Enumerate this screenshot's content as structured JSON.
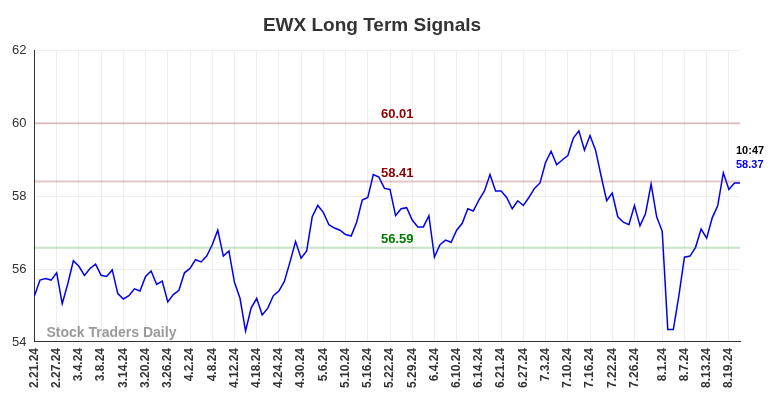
{
  "chart_data": {
    "type": "line",
    "title": "EWX Long Term Signals",
    "watermark": "Stock Traders Daily",
    "color": "#0000ee",
    "grid": true,
    "ylim": [
      54,
      62
    ],
    "yticks": [
      54,
      56,
      58,
      60,
      62
    ],
    "categories": [
      "2.21.24",
      null,
      null,
      null,
      "2.27.24",
      null,
      null,
      null,
      "3.4.24",
      null,
      null,
      null,
      "3.8.24",
      null,
      null,
      null,
      "3.14.24",
      null,
      null,
      null,
      "3.20.24",
      null,
      null,
      null,
      "3.26.24",
      null,
      null,
      null,
      "4.2.24",
      null,
      null,
      null,
      "4.8.24",
      null,
      null,
      null,
      "4.12.24",
      null,
      null,
      null,
      "4.18.24",
      null,
      null,
      null,
      "4.24.24",
      null,
      null,
      null,
      "4.30.24",
      null,
      null,
      null,
      "5.6.24",
      null,
      null,
      null,
      "5.10.24",
      null,
      null,
      null,
      "5.16.24",
      null,
      null,
      null,
      "5.22.24",
      null,
      null,
      null,
      "5.29.24",
      null,
      null,
      null,
      "6.4.24",
      null,
      null,
      null,
      "6.10.24",
      null,
      null,
      null,
      "6.14.24",
      null,
      null,
      null,
      "6.21.24",
      null,
      null,
      null,
      "6.27.24",
      null,
      null,
      null,
      "7.3.24",
      null,
      null,
      null,
      "7.10.24",
      null,
      null,
      null,
      "7.16.24",
      null,
      null,
      null,
      "7.22.24",
      null,
      null,
      null,
      "7.26.24",
      null,
      null,
      null,
      null,
      "8.1.24",
      null,
      null,
      null,
      "8.7.24",
      null,
      null,
      null,
      "8.13.24",
      null,
      null,
      null,
      "8.19.24",
      null,
      null
    ],
    "values": [
      55.27,
      55.7,
      55.74,
      55.7,
      55.9,
      55.05,
      55.6,
      56.23,
      56.08,
      55.83,
      56.02,
      56.14,
      55.83,
      55.8,
      55.98,
      55.33,
      55.18,
      55.27,
      55.46,
      55.4,
      55.8,
      55.95,
      55.58,
      55.67,
      55.1,
      55.3,
      55.42,
      55.9,
      56.02,
      56.26,
      56.2,
      56.36,
      56.67,
      57.07,
      56.36,
      56.5,
      55.64,
      55.2,
      54.3,
      54.93,
      55.2,
      54.74,
      54.93,
      55.27,
      55.4,
      55.67,
      56.2,
      56.76,
      56.3,
      56.5,
      57.44,
      57.75,
      57.56,
      57.22,
      57.13,
      57.07,
      56.95,
      56.91,
      57.29,
      57.9,
      57.97,
      58.6,
      58.53,
      58.22,
      58.19,
      57.47,
      57.66,
      57.69,
      57.35,
      57.16,
      57.16,
      57.47,
      56.33,
      56.67,
      56.8,
      56.74,
      57.07,
      57.26,
      57.66,
      57.6,
      57.9,
      58.15,
      58.6,
      58.15,
      58.15,
      57.97,
      57.66,
      57.88,
      57.75,
      57.97,
      58.22,
      58.37,
      58.93,
      59.24,
      58.87,
      59.0,
      59.12,
      59.6,
      59.8,
      59.27,
      59.67,
      59.27,
      58.56,
      57.88,
      58.09,
      57.44,
      57.29,
      57.22,
      57.75,
      57.19,
      57.53,
      58.34,
      57.44,
      57.04,
      54.34,
      54.34,
      55.27,
      56.33,
      56.36,
      56.6,
      57.1,
      56.85,
      57.41,
      57.75,
      58.65,
      58.19,
      58.37,
      58.37
    ],
    "reference_lines": [
      {
        "value": 60.01,
        "color": "#8b0000"
      },
      {
        "value": 58.41,
        "color": "#8b0000"
      },
      {
        "value": 56.59,
        "color": "#007a00"
      }
    ],
    "annotations": [
      {
        "text": "10:47",
        "color": "#000000"
      },
      {
        "value": 58.37,
        "color": "#0000ee"
      }
    ]
  }
}
